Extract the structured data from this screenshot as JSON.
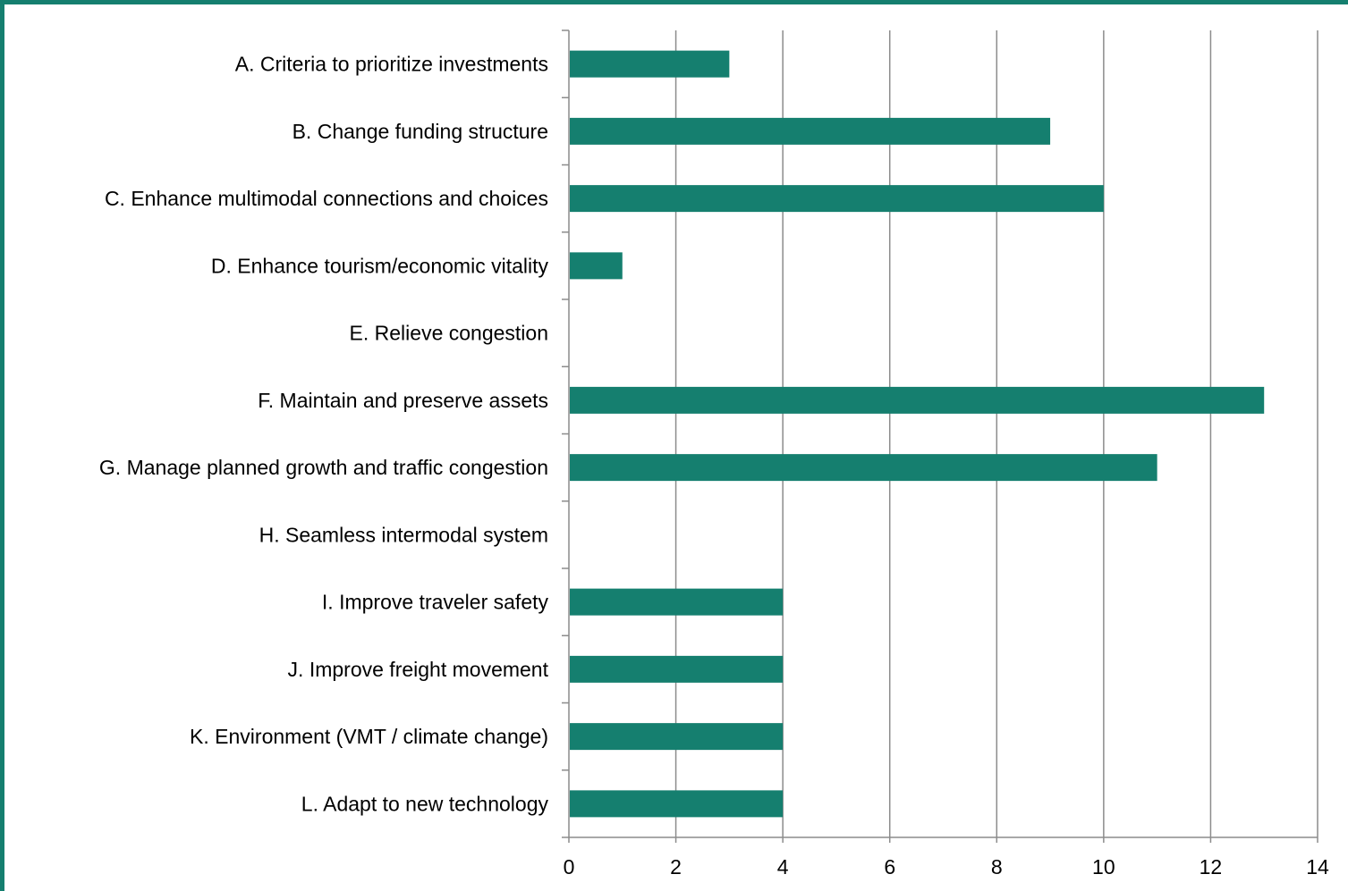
{
  "chart_data": {
    "type": "bar",
    "orientation": "horizontal",
    "categories": [
      "A. Criteria to prioritize investments",
      "B. Change funding structure",
      "C. Enhance multimodal connections and choices",
      "D. Enhance tourism/economic vitality",
      "E. Relieve congestion",
      "F. Maintain and preserve assets",
      "G. Manage planned growth and traffic congestion",
      "H. Seamless intermodal system",
      "I. Improve traveler safety",
      "J. Improve freight movement",
      "K. Environment (VMT / climate change)",
      "L. Adapt to new technology"
    ],
    "values": [
      3,
      9,
      10,
      1,
      0,
      13,
      11,
      0,
      4,
      4,
      4,
      4
    ],
    "xlim": [
      0,
      14
    ],
    "xticks": [
      "0",
      "2",
      "4",
      "6",
      "8",
      "10",
      "12",
      "14"
    ],
    "grid": "vertical",
    "legend": "none",
    "colors": {
      "bar": "#157f6f",
      "frame": "#157f6f",
      "grid": "#8c8c8c",
      "axis": "#8c8c8c"
    }
  }
}
